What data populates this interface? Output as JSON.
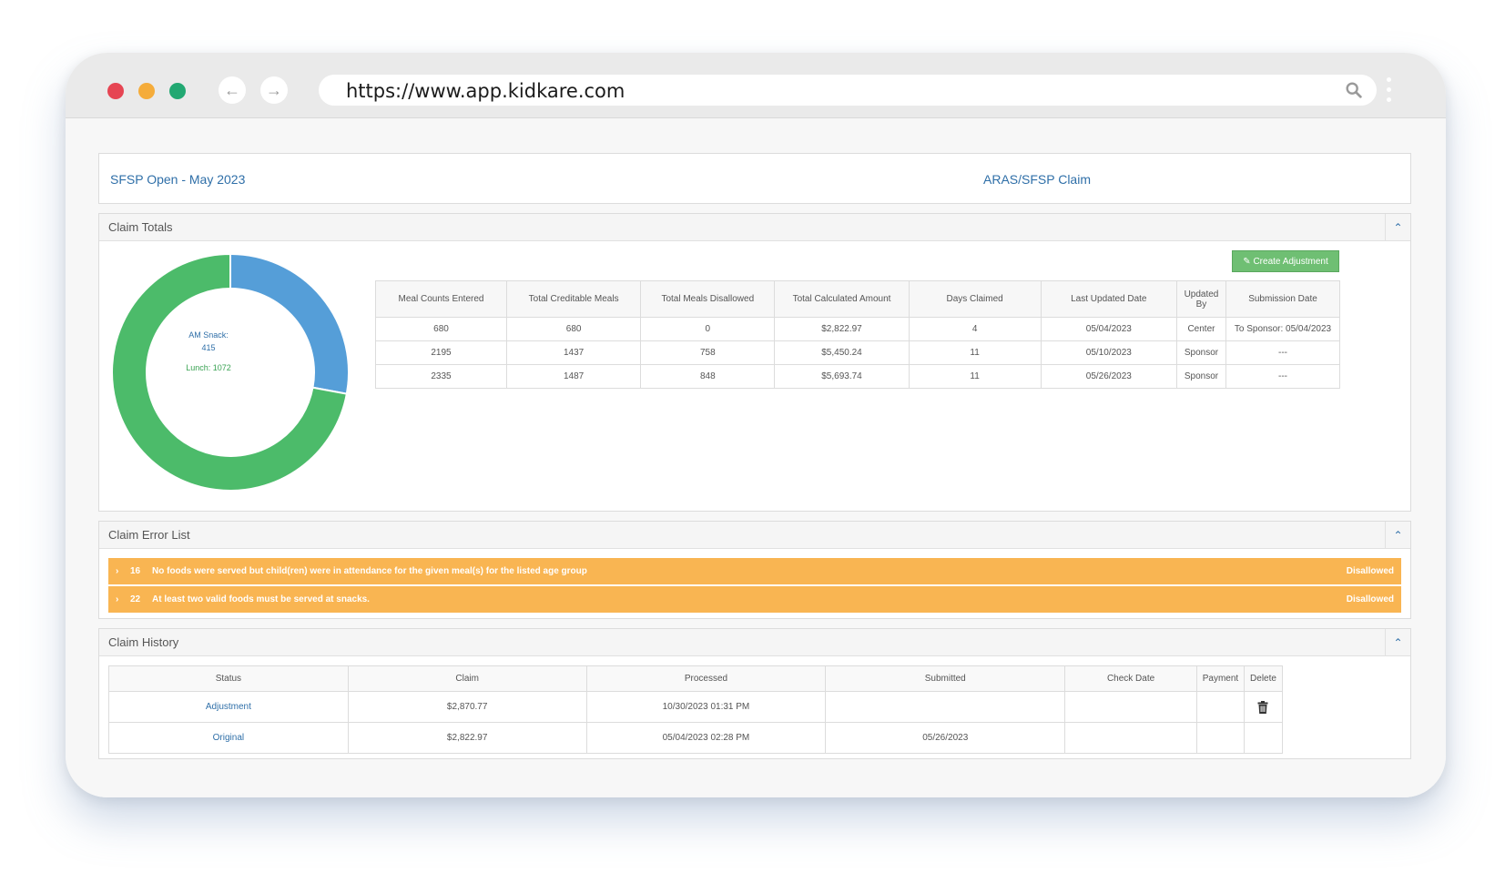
{
  "browser": {
    "url": "https://www.app.kidkare.com"
  },
  "header": {
    "claim_title": "SFSP Open -  May 2023",
    "claim_type": "ARAS/SFSP Claim"
  },
  "claim_totals": {
    "title": "Claim Totals",
    "create_adjustment_label": "Create Adjustment",
    "columns": [
      "Meal Counts Entered",
      "Total Creditable Meals",
      "Total Meals Disallowed",
      "Total Calculated Amount",
      "Days Claimed",
      "Last Updated Date",
      "Updated By",
      "Submission Date"
    ],
    "rows": [
      [
        "680",
        "680",
        "0",
        "$2,822.97",
        "4",
        "05/04/2023",
        "Center",
        "To Sponsor: 05/04/2023"
      ],
      [
        "2195",
        "1437",
        "758",
        "$5,450.24",
        "11",
        "05/10/2023",
        "Sponsor",
        "---"
      ],
      [
        "2335",
        "1487",
        "848",
        "$5,693.74",
        "11",
        "05/26/2023",
        "Sponsor",
        "---"
      ]
    ],
    "chart_data": {
      "type": "pie",
      "categories": [
        "AM Snack",
        "Lunch"
      ],
      "values": [
        415,
        1072
      ],
      "colors": [
        "#559ed8",
        "#4cbb6a"
      ],
      "labels": {
        "am_snack_name": "AM Snack:",
        "am_snack_value": "415",
        "lunch": "Lunch: 1072"
      }
    }
  },
  "claim_errors": {
    "title": "Claim Error List",
    "items": [
      {
        "count": "16",
        "message": "No foods were served but child(ren) were in attendance for the given meal(s) for the listed age group",
        "status": "Disallowed"
      },
      {
        "count": "22",
        "message": "At least two valid foods must be served at snacks.",
        "status": "Disallowed"
      }
    ],
    "color": "#f9b552"
  },
  "claim_history": {
    "title": "Claim History",
    "columns": [
      "Status",
      "Claim",
      "Processed",
      "Submitted",
      "Check Date",
      "Payment",
      "Delete"
    ],
    "rows": [
      {
        "status": "Adjustment",
        "claim": "$2,870.77",
        "processed": "10/30/2023 01:31 PM",
        "submitted": "",
        "check_date": "",
        "payment": "",
        "delete_icon": "trash-icon"
      },
      {
        "status": "Original",
        "claim": "$2,822.97",
        "processed": "05/04/2023 02:28 PM",
        "submitted": "05/26/2023",
        "check_date": "",
        "payment": "",
        "delete_icon": ""
      }
    ]
  },
  "colors": {
    "accent_link": "#2f6fa8",
    "button_green": "#6fbf73"
  }
}
